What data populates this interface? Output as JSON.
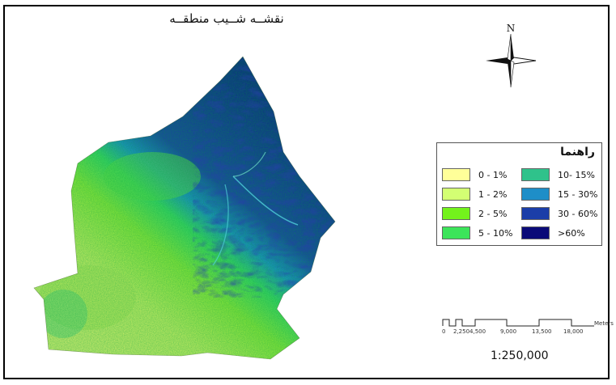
{
  "map": {
    "title": "نقشــه شــیب منطقــه",
    "north_label": "N",
    "legend": {
      "title": "راهنما",
      "items": [
        {
          "label": "0 - 1%",
          "color": "#ffff99"
        },
        {
          "label": "1 - 2%",
          "color": "#d3ff73"
        },
        {
          "label": "2 - 5%",
          "color": "#73f21c"
        },
        {
          "label": "5 - 10%",
          "color": "#3ce45a"
        },
        {
          "label": "10- 15%",
          "color": "#2fc28b"
        },
        {
          "label": "15 - 30%",
          "color": "#1e8ec8"
        },
        {
          "label": "30 - 60%",
          "color": "#1b3ea8"
        },
        {
          "label": ">60%",
          "color": "#0a0a78"
        }
      ]
    },
    "scale": {
      "ticks": [
        "0",
        "2,2504,500",
        "9,000",
        "13,500",
        "18,000"
      ],
      "unit": "Meters",
      "ratio": "1:250,000"
    }
  }
}
